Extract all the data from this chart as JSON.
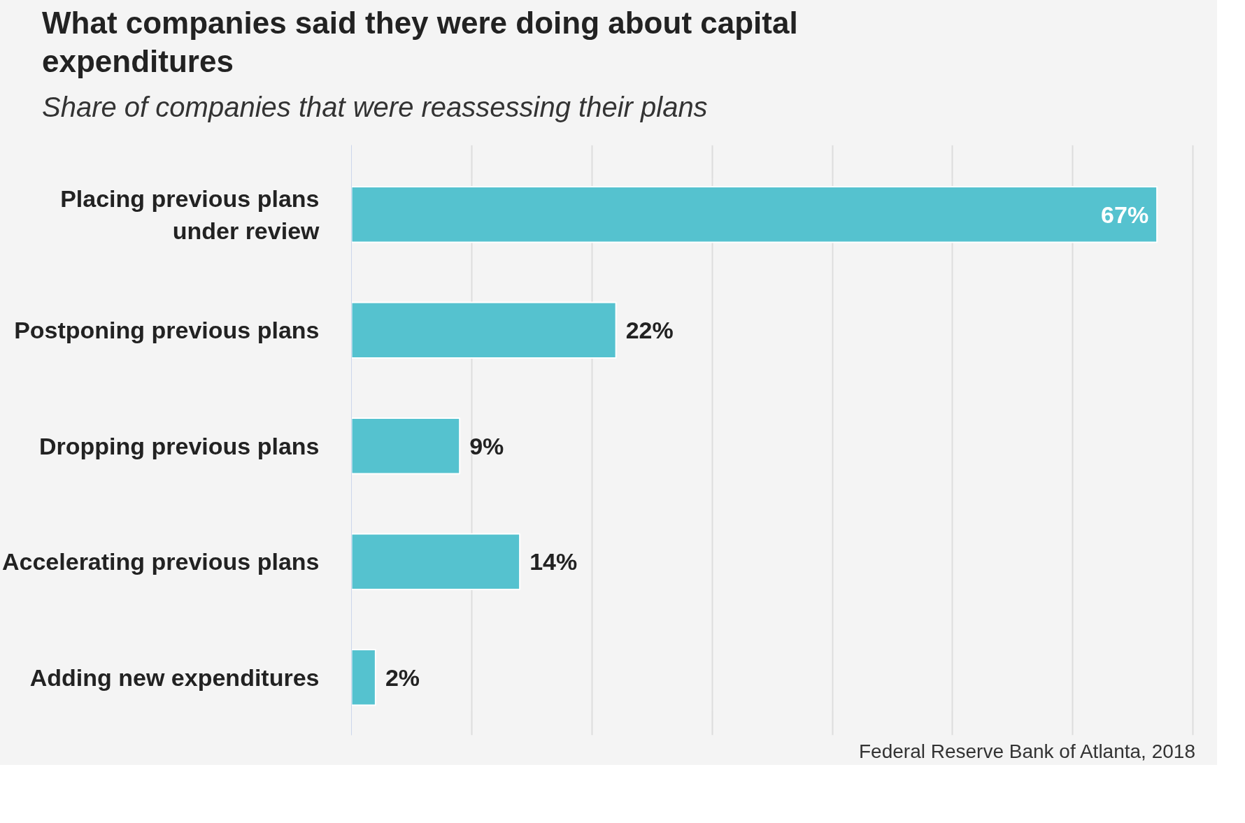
{
  "chart_data": {
    "type": "bar",
    "orientation": "horizontal",
    "title": "What companies said they were doing about capital expenditures",
    "subtitle": "Share of companies that were reassessing their plans",
    "categories": [
      "Placing previous plans under review",
      "Postponing previous plans",
      "Dropping previous plans",
      "Accelerating previous plans",
      "Adding new expenditures"
    ],
    "values": [
      67,
      22,
      9,
      14,
      2
    ],
    "value_labels": [
      "67%",
      "22%",
      "9%",
      "14%",
      "2%"
    ],
    "color": "#55c2cf",
    "xticks": [
      {
        "value": 0,
        "label": null
      },
      {
        "value": 10,
        "label": null
      },
      {
        "value": 20,
        "label": null
      },
      {
        "value": 30,
        "label": null
      },
      {
        "value": 40,
        "label": null
      },
      {
        "value": 50,
        "label": null
      },
      {
        "value": 60,
        "label": null
      },
      {
        "value": 70,
        "label": null
      }
    ],
    "grid": "x",
    "tick_labels": "y",
    "annotations": [
      "Federal Reserve Bank of Atlanta, 2018"
    ]
  }
}
